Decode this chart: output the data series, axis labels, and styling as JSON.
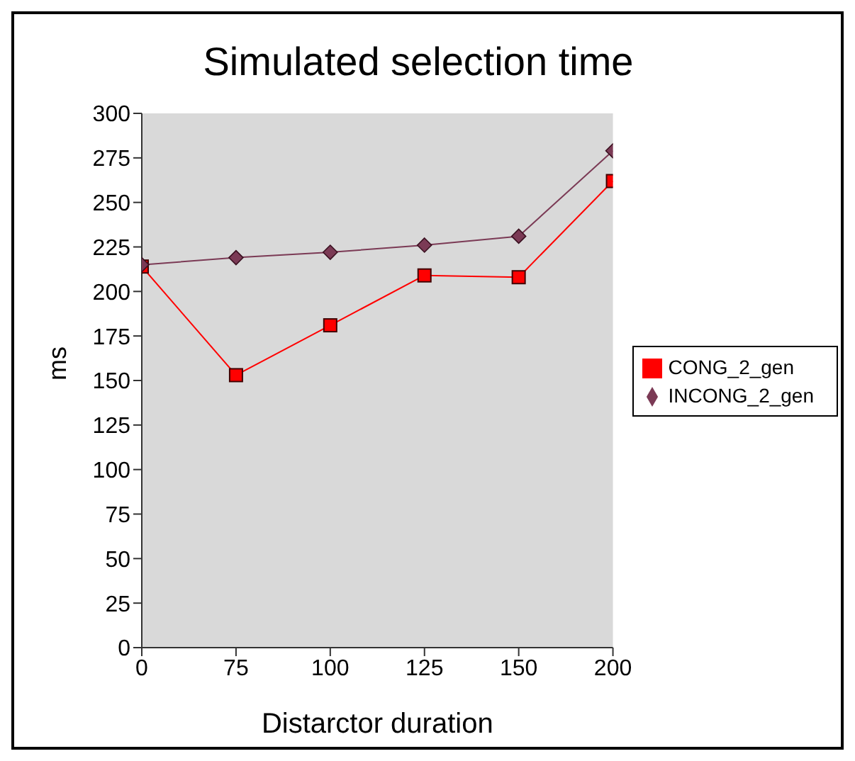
{
  "chart_data": {
    "type": "line",
    "title": "Simulated selection time",
    "xlabel": "Distarctor duration",
    "ylabel": "ms",
    "categories": [
      "0",
      "75",
      "100",
      "125",
      "150",
      "200"
    ],
    "series": [
      {
        "name": "CONG_2_gen",
        "color": "#ff0000",
        "marker": "square",
        "values": [
          214,
          153,
          181,
          209,
          208,
          262
        ]
      },
      {
        "name": "INCONG_2_gen",
        "color": "#7b3a55",
        "marker": "diamond",
        "values": [
          215,
          219,
          222,
          226,
          231,
          279
        ]
      }
    ],
    "ylim": [
      0,
      300
    ],
    "yticks": [
      0,
      25,
      50,
      75,
      100,
      125,
      150,
      175,
      200,
      225,
      250,
      275,
      300
    ],
    "legend": "right"
  }
}
